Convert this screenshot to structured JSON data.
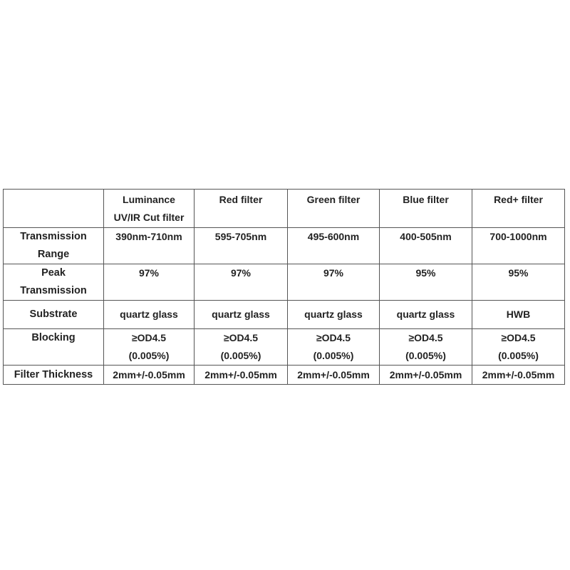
{
  "table": {
    "columns": [
      "",
      "Luminance|UV/IR Cut filter",
      "Red filter",
      "Green filter",
      "Blue filter",
      "Red+ filter"
    ],
    "rows": [
      {
        "label": "Transmission|Range",
        "values": [
          "390nm-710nm",
          "595-705nm",
          "495-600nm",
          "400-505nm",
          "700-1000nm"
        ]
      },
      {
        "label": "Peak|Transmission",
        "values": [
          "97%",
          "97%",
          "97%",
          "95%",
          "95%"
        ]
      },
      {
        "label": "Substrate",
        "values": [
          "quartz glass",
          "quartz glass",
          "quartz glass",
          "quartz glass",
          "HWB"
        ]
      },
      {
        "label": "Blocking",
        "values": [
          "≥OD4.5|(0.005%)",
          "≥OD4.5|(0.005%)",
          "≥OD4.5|(0.005%)",
          "≥OD4.5|(0.005%)",
          "≥OD4.5|(0.005%)"
        ]
      },
      {
        "label": "Filter Thickness",
        "values": [
          "2mm+/-0.05mm",
          "2mm+/-0.05mm",
          "2mm+/-0.05mm",
          "2mm+/-0.05mm",
          "2mm+/-0.05mm"
        ]
      }
    ]
  }
}
